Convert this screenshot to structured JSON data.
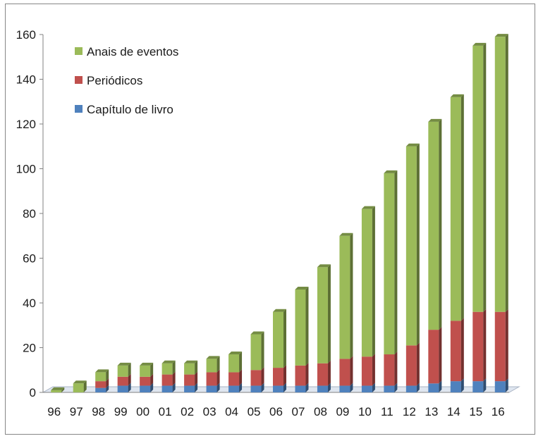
{
  "chart_data": {
    "type": "bar",
    "stacked": true,
    "three_d": true,
    "categories": [
      "96",
      "97",
      "98",
      "99",
      "00",
      "01",
      "02",
      "03",
      "04",
      "05",
      "06",
      "07",
      "08",
      "09",
      "10",
      "11",
      "12",
      "13",
      "14",
      "15",
      "16"
    ],
    "series": [
      {
        "name": "Capítulo de livro",
        "color": "#4f81bd",
        "values": [
          0,
          0,
          2,
          3,
          3,
          3,
          3,
          3,
          3,
          3,
          3,
          3,
          3,
          3,
          3,
          3,
          3,
          4,
          5,
          5,
          5
        ]
      },
      {
        "name": "Periódicos",
        "color": "#c0504d",
        "values": [
          0,
          0,
          3,
          4,
          4,
          5,
          5,
          6,
          6,
          7,
          8,
          9,
          10,
          12,
          13,
          14,
          18,
          24,
          27,
          31,
          31
        ]
      },
      {
        "name": "Anais de eventos",
        "color": "#9bbb59",
        "values": [
          1,
          4,
          4,
          5,
          5,
          5,
          5,
          6,
          8,
          16,
          25,
          34,
          43,
          55,
          66,
          81,
          89,
          93,
          100,
          119,
          123
        ]
      }
    ],
    "legend_order": [
      "Anais de eventos",
      "Periódicos",
      "Capítulo de livro"
    ],
    "ylim": [
      0,
      160
    ],
    "yticks": [
      "0",
      "20",
      "40",
      "60",
      "80",
      "100",
      "120",
      "140",
      "160"
    ],
    "grid": false,
    "legend_position": "top-left"
  }
}
